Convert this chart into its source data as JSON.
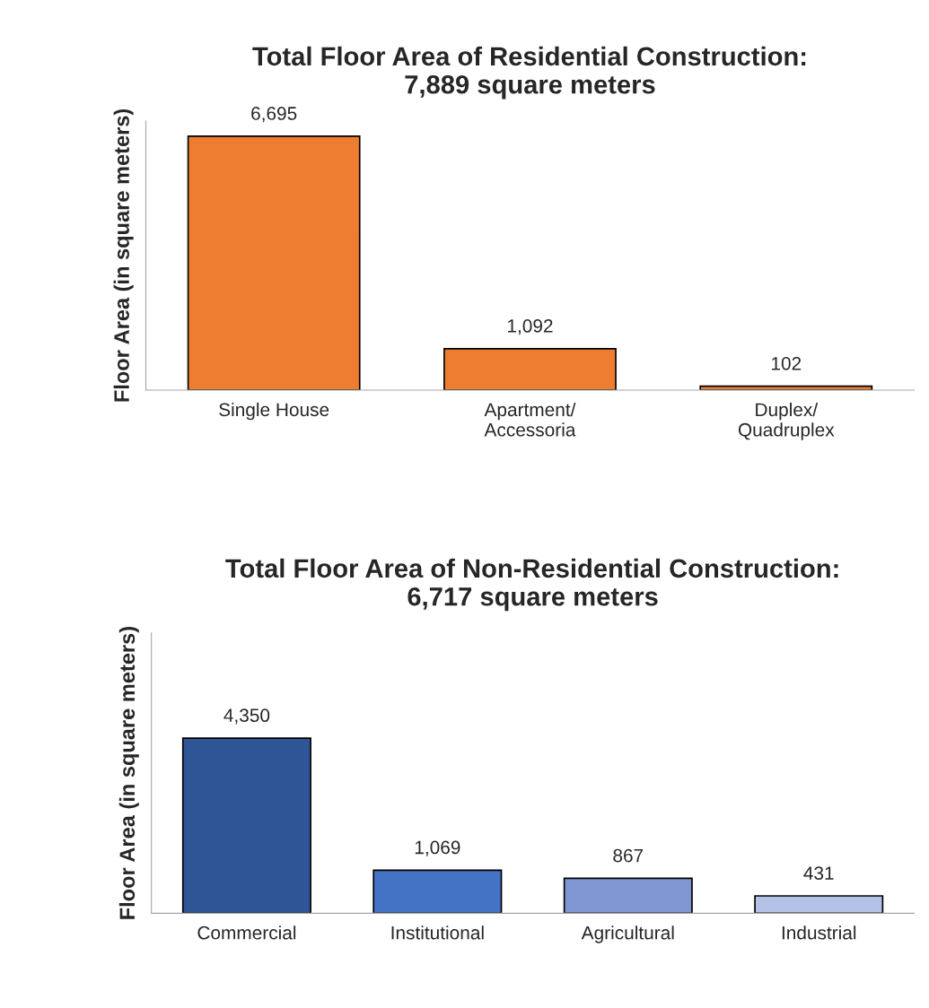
{
  "chart_data": [
    {
      "type": "bar",
      "title": "Total Floor Area of Residential Construction:\n7,889 square meters",
      "ylabel": "Floor Area (in square meters)",
      "categories": [
        "Single House",
        "Apartment/\nAccessoria",
        "Duplex/\nQuadruplex"
      ],
      "values": [
        6695,
        1092,
        102
      ],
      "colors": [
        "#ed7d31",
        "#ed7d31",
        "#ed7d31"
      ],
      "value_labels": [
        "6,695",
        "1,092",
        "102"
      ],
      "grid": false,
      "legend": false
    },
    {
      "type": "bar",
      "title": "Total Floor Area of Non-Residential Construction:\n6,717 square meters",
      "ylabel": "Floor Area (in square meters)",
      "categories": [
        "Commercial",
        "Institutional",
        "Agricultural",
        "Industrial"
      ],
      "values": [
        4350,
        1069,
        867,
        431
      ],
      "colors": [
        "#2f5597",
        "#4472c4",
        "#7f96d2",
        "#b4c2e7"
      ],
      "value_labels": [
        "4,350",
        "1,069",
        "867",
        "431"
      ],
      "grid": false,
      "legend": false
    }
  ]
}
